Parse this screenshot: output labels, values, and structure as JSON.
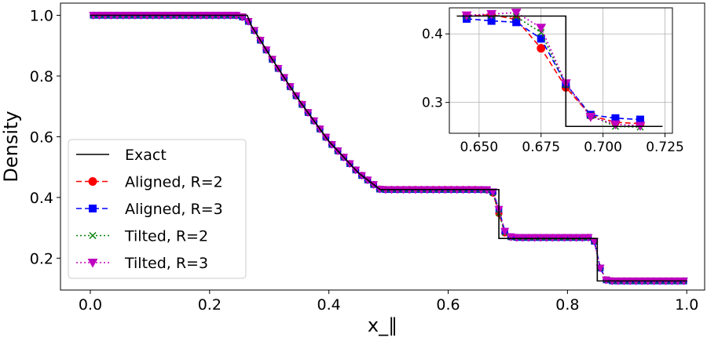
{
  "chart_data": [
    {
      "type": "line",
      "title": "",
      "xlabel": "x_∥",
      "ylabel": "Density",
      "xlim": [
        -0.05,
        1.03
      ],
      "ylim": [
        0.095,
        1.04
      ],
      "xticks": [
        "0.0",
        "0.2",
        "0.4",
        "0.6",
        "0.8",
        "1.0"
      ],
      "xtick_values": [
        0.0,
        0.2,
        0.4,
        0.6,
        0.8,
        1.0
      ],
      "yticks": [
        "0.2",
        "0.4",
        "0.6",
        "0.8",
        "1.0"
      ],
      "ytick_values": [
        0.2,
        0.4,
        0.6,
        0.8,
        1.0
      ],
      "grid": false,
      "legend_position": "lower-left",
      "series": [
        {
          "name": "Exact",
          "color": "#000000",
          "style": "solid",
          "marker": "none",
          "x": [
            0.0,
            0.263,
            0.27,
            0.3,
            0.35,
            0.4,
            0.45,
            0.486,
            0.685,
            0.685,
            0.85,
            0.85,
            1.0
          ],
          "y": [
            1.0,
            1.0,
            0.966,
            0.87,
            0.72,
            0.585,
            0.48,
            0.426,
            0.426,
            0.265,
            0.265,
            0.125,
            0.125
          ]
        },
        {
          "name": "Aligned, R=2",
          "color": "#ff0000",
          "style": "dashed",
          "marker": "circle",
          "profile": "numerical"
        },
        {
          "name": "Aligned, R=3",
          "color": "#0000ff",
          "style": "dashed",
          "marker": "square",
          "profile": "numerical"
        },
        {
          "name": "Tilted, R=2",
          "color": "#008000",
          "style": "dotted",
          "marker": "x",
          "profile": "numerical"
        },
        {
          "name": "Tilted, R=3",
          "color": "#c000c0",
          "style": "dotted",
          "marker": "triangle-down",
          "profile": "numerical"
        }
      ]
    },
    {
      "type": "line",
      "title": "",
      "xlabel": "",
      "ylabel": "",
      "xlim": [
        0.638,
        0.728
      ],
      "ylim": [
        0.255,
        0.438
      ],
      "xticks": [
        "0.650",
        "0.675",
        "0.700",
        "0.725"
      ],
      "xtick_values": [
        0.65,
        0.675,
        0.7,
        0.725
      ],
      "yticks": [
        "0.3",
        "0.4"
      ],
      "ytick_values": [
        0.3,
        0.4
      ],
      "grid": true,
      "series": [
        {
          "name": "Exact",
          "color": "#000000",
          "style": "solid",
          "marker": "none",
          "x": [
            0.641,
            0.685,
            0.685,
            0.724
          ],
          "y": [
            0.426,
            0.426,
            0.265,
            0.265
          ]
        },
        {
          "name": "Aligned, R=2",
          "color": "#ff0000",
          "style": "dashed",
          "marker": "circle",
          "x": [
            0.645,
            0.655,
            0.665,
            0.675,
            0.685,
            0.695,
            0.705,
            0.715
          ],
          "y": [
            0.426,
            0.428,
            0.421,
            0.379,
            0.322,
            0.281,
            0.271,
            0.269
          ]
        },
        {
          "name": "Aligned, R=3",
          "color": "#0000ff",
          "style": "dashed",
          "marker": "square",
          "x": [
            0.645,
            0.655,
            0.665,
            0.675,
            0.685,
            0.695,
            0.705,
            0.715
          ],
          "y": [
            0.422,
            0.419,
            0.417,
            0.393,
            0.327,
            0.282,
            0.277,
            0.275
          ]
        },
        {
          "name": "Tilted, R=2",
          "color": "#008000",
          "style": "dotted",
          "marker": "x",
          "x": [
            0.645,
            0.655,
            0.665,
            0.675,
            0.685,
            0.695,
            0.705,
            0.715
          ],
          "y": [
            0.426,
            0.427,
            0.425,
            0.402,
            0.326,
            0.281,
            0.265,
            0.264
          ]
        },
        {
          "name": "Tilted, R=3",
          "color": "#c000c0",
          "style": "dotted",
          "marker": "triangle-down",
          "x": [
            0.645,
            0.655,
            0.665,
            0.675,
            0.685,
            0.695,
            0.705,
            0.715
          ],
          "y": [
            0.427,
            0.429,
            0.431,
            0.409,
            0.328,
            0.279,
            0.268,
            0.266
          ]
        }
      ]
    }
  ]
}
